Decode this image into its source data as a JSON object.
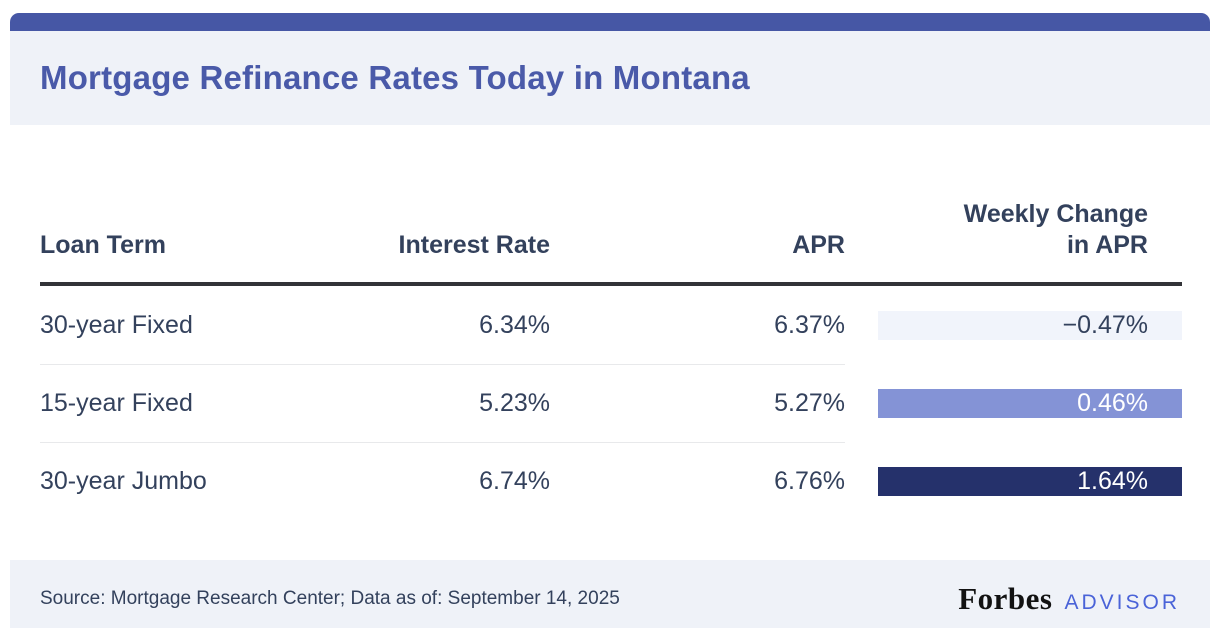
{
  "header": {
    "title": "Mortgage Refinance Rates Today in Montana"
  },
  "colors": {
    "accent_bar": "#4657A5",
    "panel_bg": "#EFF2F8",
    "title": "#4A5AA9",
    "body_text": "#33415C",
    "header_rule": "#323338",
    "advisor_blue": "#4A63D8"
  },
  "table": {
    "columns": [
      {
        "label": "Loan Term"
      },
      {
        "label": "Interest Rate"
      },
      {
        "label": "APR"
      },
      {
        "label_line1": "Weekly Change",
        "label_line2": "in APR"
      }
    ],
    "rows": [
      {
        "loan_term": "30-year Fixed",
        "interest_rate": "6.34%",
        "apr": "6.37%",
        "weekly_change": "−0.47%",
        "weekly_bg": "#F1F4FB",
        "weekly_fg": "#33415C"
      },
      {
        "loan_term": "15-year Fixed",
        "interest_rate": "5.23%",
        "apr": "5.27%",
        "weekly_change": "0.46%",
        "weekly_bg": "#8493D6",
        "weekly_fg": "#FFFFFF"
      },
      {
        "loan_term": "30-year Jumbo",
        "interest_rate": "6.74%",
        "apr": "6.76%",
        "weekly_change": "1.64%",
        "weekly_bg": "#25316B",
        "weekly_fg": "#FFFFFF"
      }
    ]
  },
  "chart_data": {
    "type": "table",
    "title": "Mortgage Refinance Rates Today in Montana",
    "columns": [
      "Loan Term",
      "Interest Rate",
      "APR",
      "Weekly Change in APR"
    ],
    "rows": [
      [
        "30-year Fixed",
        "6.34%",
        "6.37%",
        "−0.47%"
      ],
      [
        "15-year Fixed",
        "5.23%",
        "5.27%",
        "0.46%"
      ],
      [
        "30-year Jumbo",
        "6.74%",
        "6.76%",
        "1.64%"
      ]
    ],
    "layout_hints": "Weekly Change in APR column cells shaded: light lavender (negative), medium purple (moderate positive), dark navy (largest positive)"
  },
  "footer": {
    "source_text": "Source: Mortgage Research Center; Data as of: September 14, 2025",
    "brand": {
      "forbes": "Forbes",
      "advisor": "ADVISOR"
    }
  }
}
